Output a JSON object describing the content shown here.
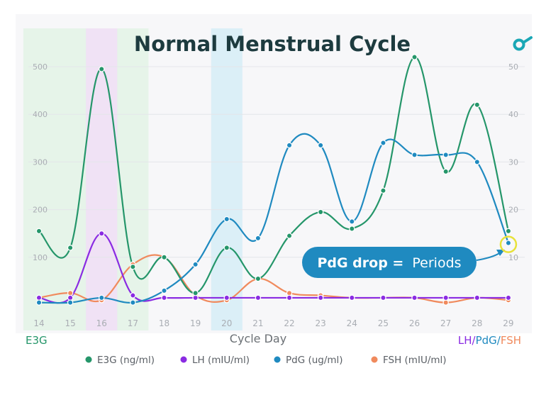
{
  "colors": {
    "background_panel": "#f7f7f9",
    "title": "#1d3b3f",
    "tick": "#a9adb3",
    "e3g": "#25966a",
    "lh": "#8a2be2",
    "pdg": "#1f8ac0",
    "fsh": "#f08a5d",
    "highlight_green": "#e3f3e6",
    "highlight_purple": "#f1def7",
    "highlight_blue": "#d6edf7",
    "callout_bg": "#1f8ac0",
    "marker": "#e7e23a",
    "logo": "#1aa7b5"
  },
  "logo": {
    "icon": "o-arrow-logo-icon"
  },
  "chart_data": {
    "type": "line",
    "title": "Normal Menstrual Cycle",
    "xlabel": "Cycle Day",
    "x": [
      14,
      15,
      16,
      17,
      18,
      19,
      20,
      21,
      22,
      23,
      24,
      25,
      26,
      27,
      28,
      29
    ],
    "ylim_left": [
      0,
      500
    ],
    "ylim_right": [
      0,
      50
    ],
    "yticks_left": [
      "100",
      "200",
      "300",
      "400",
      "500"
    ],
    "yticks_right": [
      "10",
      "20",
      "30",
      "40",
      "50"
    ],
    "left_axis_label": "E3G",
    "right_axis_label": {
      "lh": "LH",
      "sep1": "/",
      "pdg": "PdG",
      "sep2": "/",
      "fsh": "FSH"
    },
    "highlighted_days": [
      {
        "from": 14,
        "to": 17,
        "color": "green"
      },
      {
        "from": 16,
        "to": 16,
        "color": "purple"
      },
      {
        "from": 20,
        "to": 20,
        "color": "blue"
      }
    ],
    "series": [
      {
        "key": "e3g",
        "name": "E3G (ng/ml)",
        "axis": "left",
        "values": [
          155,
          120,
          495,
          80,
          100,
          25,
          120,
          55,
          145,
          195,
          160,
          240,
          520,
          280,
          420,
          155
        ]
      },
      {
        "key": "lh",
        "name": "LH (mIU/ml)",
        "axis": "right",
        "values": [
          1.5,
          1.5,
          15,
          2,
          1.5,
          1.5,
          1.5,
          1.5,
          1.5,
          1.5,
          1.5,
          1.5,
          1.5,
          1.5,
          1.5,
          1.5
        ]
      },
      {
        "key": "pdg",
        "name": "PdG (ug/ml)",
        "axis": "right",
        "values": [
          0.5,
          0.5,
          1.5,
          0.5,
          3,
          8.5,
          18,
          14,
          33.5,
          33.5,
          17.5,
          34,
          31.5,
          31.5,
          30,
          13
        ]
      },
      {
        "key": "fsh",
        "name": "FSH (mIU/ml)",
        "axis": "right",
        "values": [
          1.5,
          2.5,
          1,
          8.5,
          10,
          2,
          1,
          5.5,
          2.5,
          2,
          1.5,
          1.5,
          1.5,
          0.5,
          1.5,
          1
        ]
      }
    ],
    "annotation": {
      "bold": "PdG drop =",
      "text": "Periods",
      "target_day": 29
    },
    "legend_position": "bottom-center",
    "grid": true
  }
}
